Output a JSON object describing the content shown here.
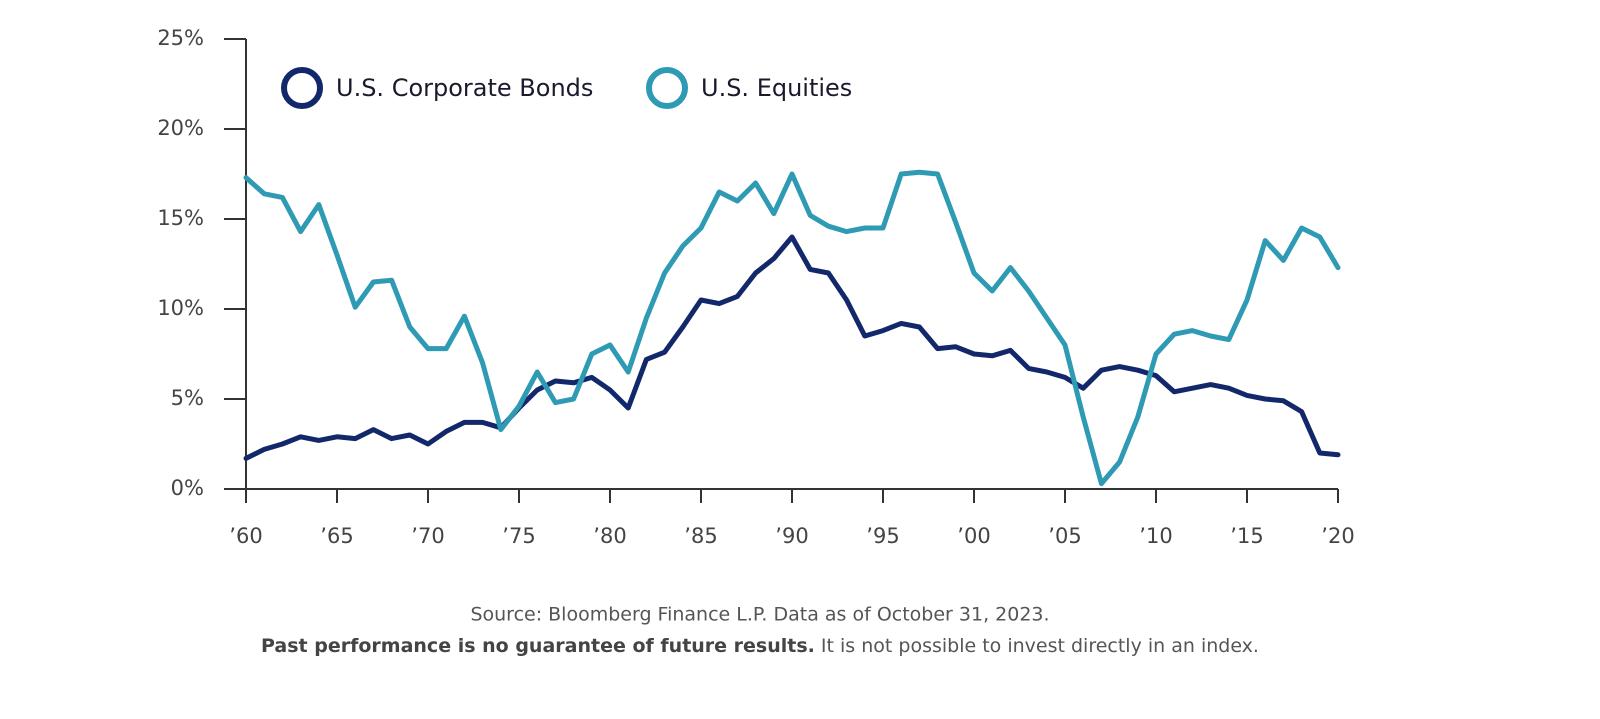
{
  "chart_data": {
    "type": "line",
    "x": [
      1960,
      1961,
      1962,
      1963,
      1964,
      1965,
      1966,
      1967,
      1968,
      1969,
      1970,
      1971,
      1972,
      1973,
      1974,
      1975,
      1976,
      1977,
      1978,
      1979,
      1980,
      1981,
      1982,
      1983,
      1984,
      1985,
      1986,
      1987,
      1988,
      1989,
      1990,
      1991,
      1992,
      1993,
      1994,
      1995,
      1996,
      1997,
      1998,
      1999,
      2000,
      2001,
      2002,
      2003,
      2004,
      2005,
      2006,
      2007,
      2008,
      2009,
      2010,
      2011,
      2012,
      2013,
      2014,
      2015,
      2016,
      2017,
      2018,
      2019,
      2020
    ],
    "series": [
      {
        "name": "U.S. Corporate Bonds",
        "color": "#13286a",
        "values": [
          1.7,
          2.2,
          2.5,
          2.9,
          2.7,
          2.9,
          2.8,
          3.3,
          2.8,
          3.0,
          2.5,
          3.2,
          3.7,
          3.7,
          3.4,
          4.5,
          5.5,
          6.0,
          5.9,
          6.2,
          5.5,
          4.5,
          7.2,
          7.6,
          9.0,
          10.5,
          10.3,
          10.7,
          12.0,
          12.8,
          14.0,
          12.2,
          12.0,
          10.5,
          8.5,
          8.8,
          9.2,
          9.0,
          7.8,
          7.9,
          7.5,
          7.4,
          7.7,
          6.7,
          6.5,
          6.2,
          5.6,
          6.6,
          6.8,
          6.6,
          6.3,
          5.4,
          5.6,
          5.8,
          5.6,
          5.2,
          5.0,
          4.9,
          4.3,
          2.0,
          1.9
        ]
      },
      {
        "name": "U.S. Equities",
        "color": "#2e9ab3",
        "values": [
          17.3,
          16.4,
          16.2,
          14.3,
          15.8,
          13.0,
          10.1,
          11.5,
          11.6,
          9.0,
          7.8,
          7.8,
          9.6,
          7.0,
          3.3,
          4.6,
          6.5,
          4.8,
          5.0,
          7.5,
          8.0,
          6.5,
          9.5,
          12.0,
          13.5,
          14.5,
          16.5,
          16.0,
          17.0,
          15.3,
          17.5,
          15.2,
          14.6,
          14.3,
          14.5,
          14.5,
          17.5,
          17.6,
          17.5,
          14.8,
          12.0,
          11.0,
          12.3,
          11.0,
          9.5,
          8.0,
          4.0,
          0.3,
          1.5,
          4.0,
          7.5,
          8.6,
          8.8,
          8.5,
          8.3,
          10.5,
          13.8,
          12.7,
          14.5,
          14.0,
          12.3
        ]
      }
    ],
    "xlim": [
      1960,
      2020
    ],
    "xticks": [
      {
        "value": 1960,
        "label": "’60"
      },
      {
        "value": 1965,
        "label": "’65"
      },
      {
        "value": 1970,
        "label": "’70"
      },
      {
        "value": 1975,
        "label": "’75"
      },
      {
        "value": 1980,
        "label": "’80"
      },
      {
        "value": 1985,
        "label": "’85"
      },
      {
        "value": 1990,
        "label": "’90"
      },
      {
        "value": 1995,
        "label": "’95"
      },
      {
        "value": 2000,
        "label": "’00"
      },
      {
        "value": 2005,
        "label": "’05"
      },
      {
        "value": 2010,
        "label": "’10"
      },
      {
        "value": 2015,
        "label": "’15"
      },
      {
        "value": 2020,
        "label": "’20"
      }
    ],
    "ylim": [
      0,
      25
    ],
    "yticks": [
      {
        "value": 0,
        "label": "0%"
      },
      {
        "value": 5,
        "label": "5%"
      },
      {
        "value": 10,
        "label": "10%"
      },
      {
        "value": 15,
        "label": "15%"
      },
      {
        "value": 20,
        "label": "20%"
      },
      {
        "value": 25,
        "label": "25%"
      }
    ],
    "grid": false,
    "legend": "top-left",
    "source": "Source: Bloomberg Finance L.P. Data as of October 31, 2023.",
    "disclaimer_bold": "Past performance is no guarantee of future results.",
    "disclaimer": " It is not possible to invest directly in an index."
  }
}
